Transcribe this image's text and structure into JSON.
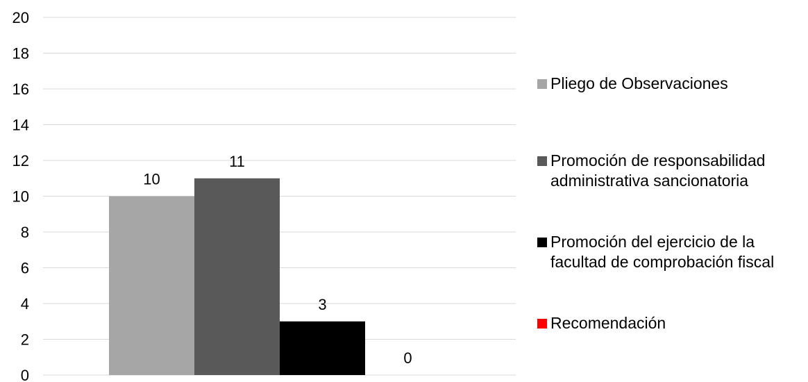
{
  "chart_data": {
    "type": "bar",
    "categories": [
      ""
    ],
    "series": [
      {
        "name": "Pliego de Observaciones",
        "values": [
          10
        ],
        "color": "#a6a6a6"
      },
      {
        "name": "Promoción de responsabilidad administrativa sancionatoria",
        "values": [
          11
        ],
        "color": "#595959"
      },
      {
        "name": "Promoción del ejercicio de la facultad de comprobación fiscal",
        "values": [
          3
        ],
        "color": "#000000"
      },
      {
        "name": "Recomendación",
        "values": [
          0
        ],
        "color": "#ff0000"
      }
    ],
    "data_labels": [
      "10",
      "11",
      "3",
      "0"
    ],
    "yticks": [
      "0",
      "2",
      "4",
      "6",
      "8",
      "10",
      "12",
      "14",
      "16",
      "18",
      "20"
    ],
    "ylim": [
      0,
      20
    ],
    "title": "",
    "xlabel": "",
    "ylabel": "",
    "grid": true,
    "legend_position": "right"
  }
}
